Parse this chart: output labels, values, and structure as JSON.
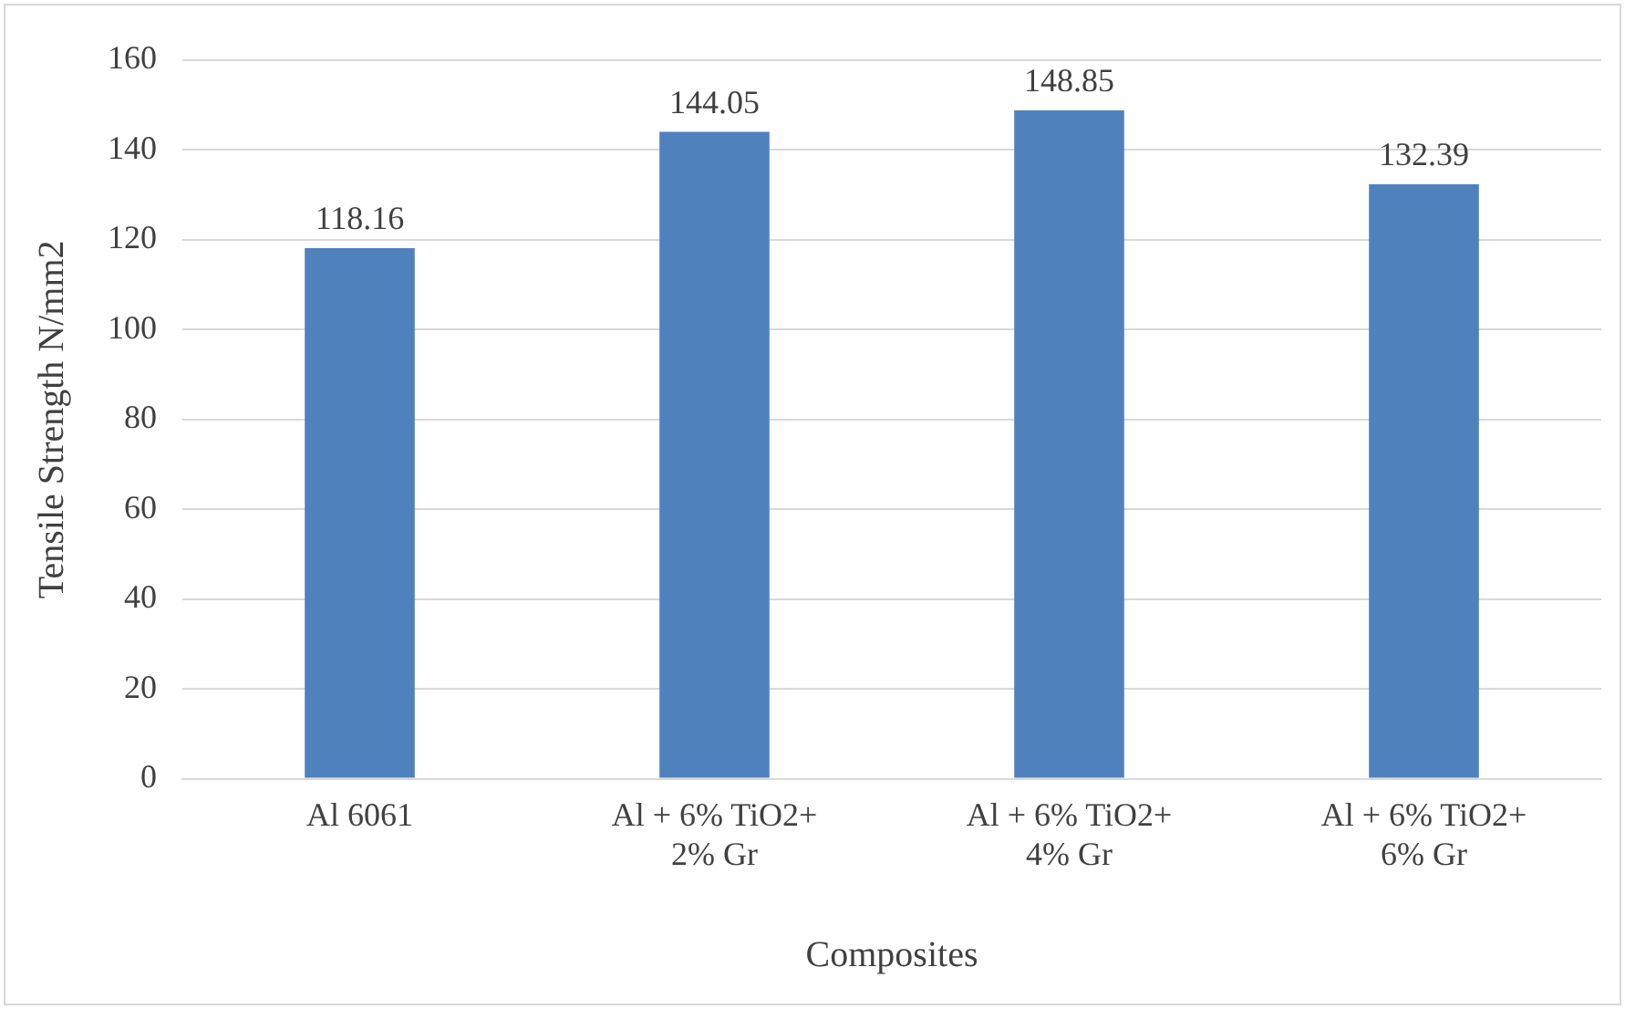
{
  "chart_data": {
    "type": "bar",
    "xlabel": "Composites",
    "ylabel": "Tensile Strength N/mm2",
    "categories": [
      "Al 6061",
      "Al + 6% TiO2+ 2% Gr",
      "Al + 6% TiO2+ 4% Gr",
      "Al + 6% TiO2+ 6% Gr"
    ],
    "values": [
      118.16,
      144.05,
      148.85,
      132.39
    ],
    "color": "#4f81bd",
    "ylim": [
      0,
      160
    ],
    "yticks": [
      0,
      20,
      40,
      60,
      80,
      100,
      120,
      140,
      160
    ],
    "grid": "y",
    "data_labels": true
  }
}
